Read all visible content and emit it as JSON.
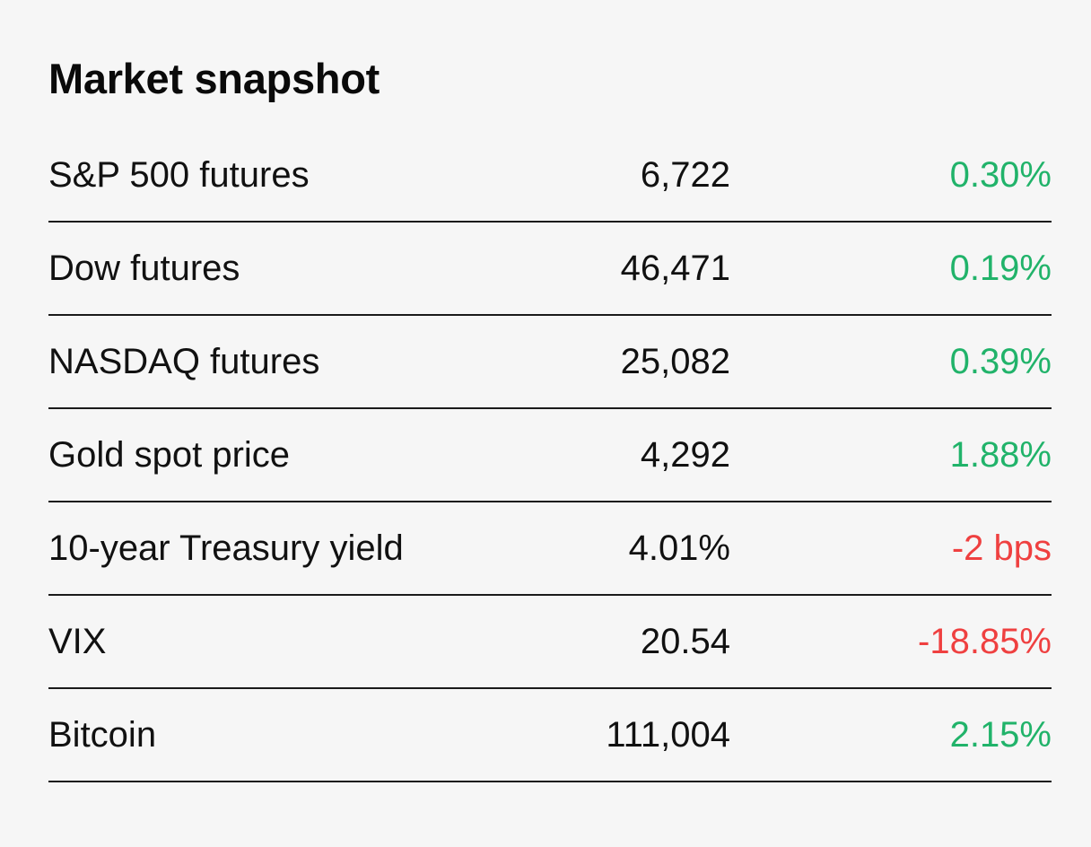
{
  "header": {
    "title": "Market snapshot"
  },
  "colors": {
    "positive": "#21b36a",
    "negative": "#ef4040",
    "text": "#111111",
    "background": "#f6f6f6",
    "divider": "#1a1a1a"
  },
  "rows": [
    {
      "name": "S&P 500 futures",
      "value": "6,722",
      "change": "0.30%",
      "direction": "positive"
    },
    {
      "name": "Dow futures",
      "value": "46,471",
      "change": "0.19%",
      "direction": "positive"
    },
    {
      "name": "NASDAQ futures",
      "value": "25,082",
      "change": "0.39%",
      "direction": "positive"
    },
    {
      "name": "Gold spot price",
      "value": "4,292",
      "change": "1.88%",
      "direction": "positive"
    },
    {
      "name": "10-year Treasury yield",
      "value": "4.01%",
      "change": "-2 bps",
      "direction": "negative"
    },
    {
      "name": "VIX",
      "value": "20.54",
      "change": "-18.85%",
      "direction": "negative"
    },
    {
      "name": "Bitcoin",
      "value": "111,004",
      "change": "2.15%",
      "direction": "positive"
    }
  ]
}
